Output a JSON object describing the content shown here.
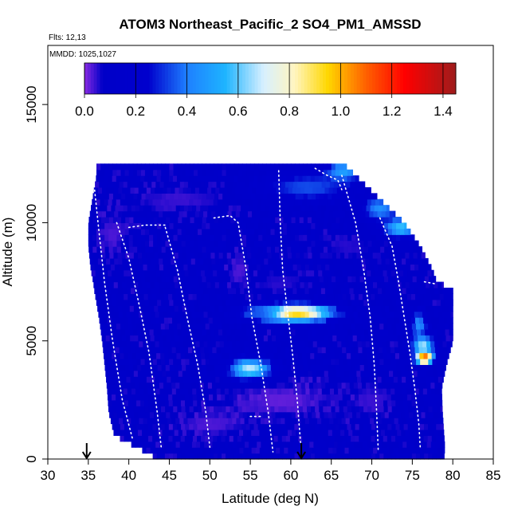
{
  "chart_data": {
    "type": "heatmap",
    "title": "ATOM3 Northeast_Pacific_2 SO4_PM1_AMSSD",
    "flights_label": "Flts: 12,13",
    "dates_label": "MMDD: 1025,1027",
    "xlabel": "Latitude (deg N)",
    "ylabel": "Altitude (m)",
    "xlim": [
      30,
      85
    ],
    "ylim": [
      0,
      17500
    ],
    "xticks": [
      "30",
      "35",
      "40",
      "45",
      "50",
      "55",
      "60",
      "65",
      "70",
      "75",
      "80",
      "85"
    ],
    "yticks": [
      "0",
      "5000",
      "10000",
      "15000"
    ],
    "colorbar": {
      "range": [
        0,
        1.45
      ],
      "ticks": [
        "0.0",
        "0.2",
        "0.4",
        "0.6",
        "0.8",
        "1.0",
        "1.2",
        "1.4"
      ],
      "stops": [
        {
          "v": 0.0,
          "c": "#8a2be2"
        },
        {
          "v": 0.07,
          "c": "#0000c8"
        },
        {
          "v": 0.25,
          "c": "#0000cd"
        },
        {
          "v": 0.4,
          "c": "#1e7fff"
        },
        {
          "v": 0.55,
          "c": "#1eb4ff"
        },
        {
          "v": 0.7,
          "c": "#d8f0ff"
        },
        {
          "v": 0.82,
          "c": "#fff5c0"
        },
        {
          "v": 0.95,
          "c": "#ffd700"
        },
        {
          "v": 1.1,
          "c": "#ff6000"
        },
        {
          "v": 1.25,
          "c": "#ff0000"
        },
        {
          "v": 1.45,
          "c": "#9e1c1c"
        }
      ]
    },
    "lat_range": [
      35,
      80
    ],
    "alt_step": 250,
    "profile_extent": [
      {
        "alt": 0,
        "lat_min": 43.6,
        "lat_max": 78.9
      },
      {
        "alt": 500,
        "lat_min": 41.0,
        "lat_max": 79.0
      },
      {
        "alt": 1000,
        "lat_min": 38.2,
        "lat_max": 78.9
      },
      {
        "alt": 2000,
        "lat_min": 37.5,
        "lat_max": 78.7
      },
      {
        "alt": 3000,
        "lat_min": 37.3,
        "lat_max": 78.6
      },
      {
        "alt": 4000,
        "lat_min": 37.0,
        "lat_max": 79.2
      },
      {
        "alt": 5000,
        "lat_min": 36.7,
        "lat_max": 80.0
      },
      {
        "alt": 6000,
        "lat_min": 36.3,
        "lat_max": 80.0
      },
      {
        "alt": 7200,
        "lat_min": 35.7,
        "lat_max": 80.0
      },
      {
        "alt": 7500,
        "lat_min": 35.6,
        "lat_max": 78.0
      },
      {
        "alt": 8000,
        "lat_min": 35.3,
        "lat_max": 77.5
      },
      {
        "alt": 9000,
        "lat_min": 35.0,
        "lat_max": 76.0
      },
      {
        "alt": 10000,
        "lat_min": 35.0,
        "lat_max": 74.0
      },
      {
        "alt": 11000,
        "lat_min": 35.5,
        "lat_max": 71.0
      },
      {
        "alt": 12000,
        "lat_min": 36.0,
        "lat_max": 68.0
      },
      {
        "alt": 12500,
        "lat_min": 36.0,
        "lat_max": 66.5
      }
    ],
    "background_value": 0.11,
    "features": [
      {
        "lat": 60.5,
        "alt": 6200,
        "dlat": 4.5,
        "dalt": 350,
        "value": 1.0
      },
      {
        "lat": 56.0,
        "alt": 6200,
        "dlat": 2.5,
        "dalt": 300,
        "value": 0.35
      },
      {
        "lat": 55.0,
        "alt": 3800,
        "dlat": 2.5,
        "dalt": 450,
        "value": 0.75
      },
      {
        "lat": 76.5,
        "alt": 4300,
        "dlat": 1.0,
        "dalt": 250,
        "value": 1.35
      },
      {
        "lat": 76.3,
        "alt": 4800,
        "dlat": 1.2,
        "dalt": 400,
        "value": 0.7
      },
      {
        "lat": 75.8,
        "alt": 5700,
        "dlat": 0.9,
        "dalt": 600,
        "value": 0.45
      },
      {
        "lat": 73.5,
        "alt": 9800,
        "dlat": 2.0,
        "dalt": 400,
        "value": 0.6
      },
      {
        "lat": 71.0,
        "alt": 10600,
        "dlat": 2.0,
        "dalt": 500,
        "value": 0.45
      },
      {
        "lat": 62.0,
        "alt": 11500,
        "dlat": 6.0,
        "dalt": 600,
        "value": 0.35
      },
      {
        "lat": 66.5,
        "alt": 12200,
        "dlat": 2.0,
        "dalt": 400,
        "value": 0.5
      },
      {
        "lat": 59.0,
        "alt": 2500,
        "dlat": 8.0,
        "dalt": 900,
        "value": 0.02
      },
      {
        "lat": 50.0,
        "alt": 1500,
        "dlat": 6.0,
        "dalt": 700,
        "value": 0.03
      },
      {
        "lat": 70.0,
        "alt": 2500,
        "dlat": 3.0,
        "dalt": 900,
        "value": 0.04
      },
      {
        "lat": 46.0,
        "alt": 11000,
        "dlat": 8.0,
        "dalt": 700,
        "value": 0.04
      },
      {
        "lat": 38.0,
        "alt": 9500,
        "dlat": 2.5,
        "dalt": 1000,
        "value": 0.03
      },
      {
        "lat": 59.0,
        "alt": 7500,
        "dlat": 5.0,
        "dalt": 600,
        "value": 0.05
      },
      {
        "lat": 53.5,
        "alt": 8000,
        "dlat": 1.5,
        "dalt": 900,
        "value": 0.03
      },
      {
        "lat": 67.0,
        "alt": 9000,
        "dlat": 4.0,
        "dalt": 800,
        "value": 0.05
      }
    ],
    "flight_tracks": [
      [
        [
          35.5,
          12300
        ],
        [
          36.2,
          10000
        ],
        [
          37.0,
          7500
        ],
        [
          38.0,
          5000
        ],
        [
          39.2,
          2500
        ],
        [
          40.5,
          800
        ]
      ],
      [
        [
          38.5,
          10000
        ],
        [
          40.0,
          8500
        ],
        [
          41.3,
          6500
        ],
        [
          42.5,
          4500
        ],
        [
          43.5,
          2000
        ],
        [
          44.0,
          500
        ]
      ],
      [
        [
          40.0,
          9800
        ],
        [
          42.0,
          9900
        ],
        [
          44.8,
          9900
        ]
      ],
      [
        [
          44.5,
          9800
        ],
        [
          46.0,
          8000
        ],
        [
          47.2,
          6000
        ],
        [
          48.5,
          4000
        ],
        [
          49.5,
          2000
        ],
        [
          50.0,
          500
        ]
      ],
      [
        [
          50.5,
          10200
        ],
        [
          52.5,
          10300
        ],
        [
          53.5,
          10000
        ],
        [
          54.5,
          8000
        ],
        [
          55.2,
          6000
        ],
        [
          56.3,
          4000
        ],
        [
          57.2,
          2000
        ],
        [
          57.8,
          300
        ]
      ],
      [
        [
          55.0,
          1800
        ],
        [
          56.5,
          1800
        ]
      ],
      [
        [
          58.5,
          12200
        ],
        [
          58.7,
          10000
        ],
        [
          59.0,
          8000
        ],
        [
          59.5,
          6500
        ],
        [
          60.2,
          4500
        ],
        [
          60.8,
          2500
        ],
        [
          61.2,
          700
        ]
      ],
      [
        [
          63.0,
          12300
        ],
        [
          64.5,
          12000
        ],
        [
          65.8,
          11800
        ],
        [
          66.3,
          11400
        ]
      ],
      [
        [
          66.3,
          12000
        ],
        [
          68.0,
          10000
        ],
        [
          69.0,
          8000
        ],
        [
          69.8,
          6000
        ],
        [
          70.3,
          4000
        ],
        [
          70.6,
          2000
        ],
        [
          70.8,
          300
        ]
      ],
      [
        [
          71.0,
          10200
        ],
        [
          72.5,
          9000
        ],
        [
          73.3,
          7500
        ],
        [
          74.0,
          6000
        ],
        [
          74.7,
          4500
        ],
        [
          75.3,
          3000
        ],
        [
          75.8,
          1500
        ],
        [
          76.0,
          400
        ]
      ],
      [
        [
          76.5,
          7500
        ],
        [
          78.0,
          7400
        ]
      ]
    ],
    "arrows": [
      {
        "lat": 34.8,
        "label": ""
      },
      {
        "lat": 61.3,
        "label": ""
      }
    ]
  }
}
